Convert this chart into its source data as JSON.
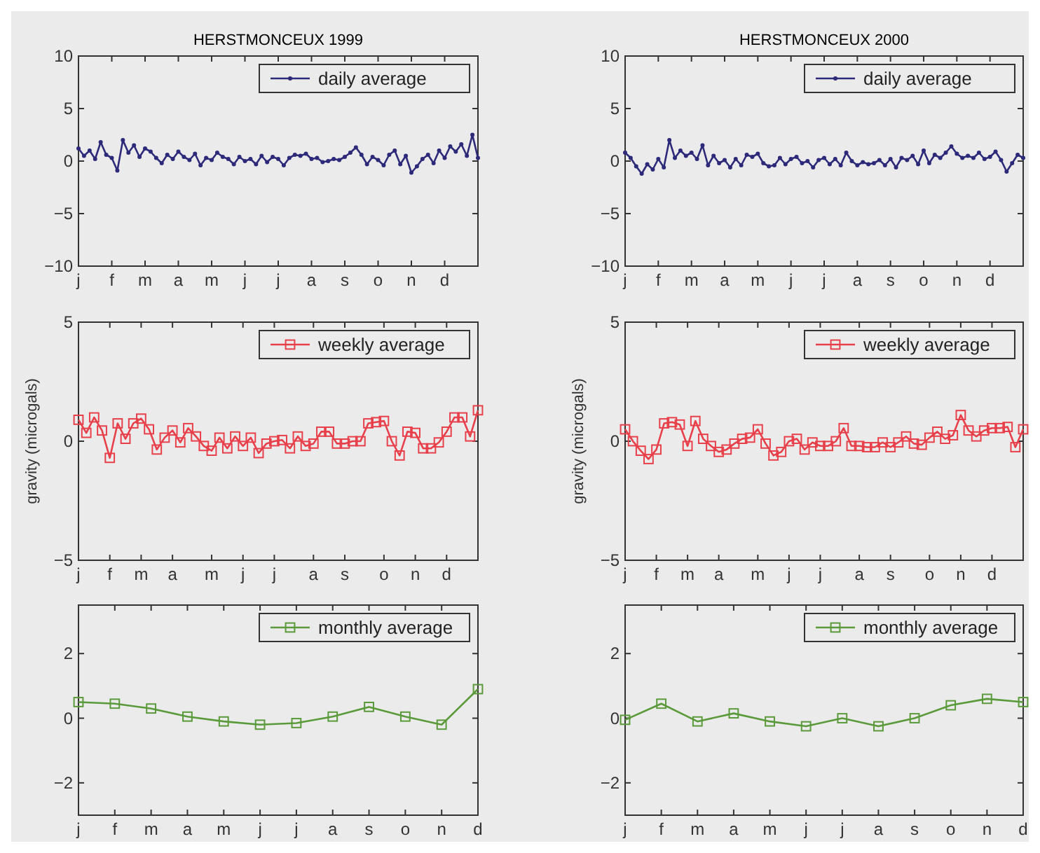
{
  "chart_data": [
    {
      "type": "line",
      "title": "HERSTMONCEUX 1999",
      "marker": "circle",
      "legend": "top right",
      "grid": false,
      "categories": [
        "j",
        null,
        null,
        null,
        null,
        null,
        "f",
        null,
        null,
        null,
        null,
        null,
        "m",
        null,
        null,
        null,
        null,
        null,
        "a",
        null,
        null,
        null,
        null,
        null,
        "m",
        null,
        null,
        null,
        null,
        null,
        "j",
        null,
        null,
        null,
        null,
        null,
        "j",
        null,
        null,
        null,
        null,
        null,
        "a",
        null,
        null,
        null,
        null,
        null,
        "s",
        null,
        null,
        null,
        null,
        null,
        "o",
        null,
        null,
        null,
        null,
        null,
        "n",
        null,
        null,
        null,
        null,
        null,
        "d",
        null,
        null,
        null,
        null,
        null,
        null
      ],
      "series": [
        {
          "name": "daily average",
          "color": "#2e2a7a",
          "values": [
            1.2,
            0.5,
            1.0,
            0.2,
            1.8,
            0.6,
            0.3,
            -0.9,
            2.0,
            0.8,
            1.5,
            0.4,
            1.2,
            0.9,
            0.3,
            -0.2,
            0.6,
            0.2,
            0.9,
            0.4,
            0.1,
            0.7,
            -0.4,
            0.3,
            0.1,
            0.8,
            0.4,
            0.2,
            -0.3,
            0.4,
            0,
            0.2,
            -0.3,
            0.5,
            -0.1,
            0.4,
            0.2,
            -0.4,
            0.3,
            0.6,
            0.5,
            0.7,
            0.2,
            0.3,
            -0.1,
            0,
            0.2,
            0.1,
            0.4,
            0.8,
            1.3,
            0.6,
            -0.3,
            0.4,
            0.1,
            -0.4,
            0.6,
            1.0,
            -0.3,
            0.5,
            -1.1,
            -0.5,
            0.2,
            0.6,
            -0.2,
            1.0,
            0.3,
            1.4,
            0.9,
            1.6,
            0.5,
            2.5,
            0.3
          ]
        }
      ],
      "ylim": [
        -10,
        10
      ],
      "yticks": [
        -10,
        -5,
        0,
        5,
        10
      ]
    },
    {
      "type": "line",
      "title": "HERSTMONCEUX 2000",
      "marker": "circle",
      "legend": "top right",
      "grid": false,
      "categories": [
        "j",
        null,
        null,
        null,
        null,
        null,
        "f",
        null,
        null,
        null,
        null,
        null,
        "m",
        null,
        null,
        null,
        null,
        null,
        "a",
        null,
        null,
        null,
        null,
        null,
        "m",
        null,
        null,
        null,
        null,
        null,
        "j",
        null,
        null,
        null,
        null,
        null,
        "j",
        null,
        null,
        null,
        null,
        null,
        "a",
        null,
        null,
        null,
        null,
        null,
        "s",
        null,
        null,
        null,
        null,
        null,
        "o",
        null,
        null,
        null,
        null,
        null,
        "n",
        null,
        null,
        null,
        null,
        null,
        "d",
        null,
        null,
        null,
        null,
        null,
        null
      ],
      "series": [
        {
          "name": "daily average",
          "color": "#2e2a7a",
          "values": [
            0.8,
            0.3,
            -0.5,
            -1.2,
            -0.3,
            -0.8,
            0.2,
            -0.6,
            2.0,
            0.3,
            1.0,
            0.5,
            0.8,
            0.2,
            1.5,
            -0.4,
            0.5,
            -0.2,
            0.1,
            -0.6,
            0.2,
            -0.4,
            0.6,
            0.4,
            0.7,
            -0.2,
            -0.5,
            -0.4,
            0.3,
            -0.3,
            0.2,
            0.4,
            -0.2,
            0,
            -0.6,
            0.1,
            0.3,
            -0.3,
            0.2,
            -0.4,
            0.8,
            0,
            -0.4,
            -0.1,
            -0.3,
            -0.2,
            0.1,
            -0.4,
            0.2,
            -0.6,
            0.3,
            0.1,
            0.5,
            -0.3,
            1.0,
            -0.2,
            0.6,
            0.3,
            0.8,
            1.4,
            0.7,
            0.3,
            0.5,
            0.3,
            0.8,
            0.2,
            0.4,
            0.9,
            0.1,
            -1.0,
            -0.2,
            0.6,
            0.3
          ]
        }
      ],
      "ylim": [
        -10,
        10
      ],
      "yticks": [
        -10,
        -5,
        0,
        5,
        10
      ]
    },
    {
      "type": "line",
      "ylabel": "gravity (microgals)",
      "marker": "square",
      "legend": "top right",
      "grid": false,
      "categories": [
        "j",
        null,
        null,
        null,
        "f",
        null,
        null,
        null,
        "m",
        null,
        null,
        null,
        "a",
        null,
        null,
        null,
        null,
        "m",
        null,
        null,
        null,
        "j",
        null,
        null,
        null,
        "j",
        null,
        null,
        null,
        null,
        "a",
        null,
        null,
        null,
        "s",
        null,
        null,
        null,
        null,
        "o",
        null,
        null,
        null,
        "n",
        null,
        null,
        null,
        "d",
        null,
        null,
        null,
        null
      ],
      "series": [
        {
          "name": "weekly average",
          "color": "#e8404a",
          "values": [
            0.9,
            0.35,
            1.0,
            0.45,
            -0.7,
            0.75,
            0.1,
            0.75,
            0.95,
            0.5,
            -0.35,
            0.15,
            0.45,
            -0.05,
            0.55,
            0.2,
            -0.2,
            -0.4,
            0.15,
            -0.3,
            0.2,
            -0.2,
            0.15,
            -0.5,
            -0.1,
            0,
            0.05,
            -0.3,
            0.2,
            -0.2,
            -0.1,
            0.4,
            0.4,
            -0.1,
            -0.1,
            0,
            0,
            0.75,
            0.8,
            0.85,
            0,
            -0.6,
            0.4,
            0.35,
            -0.3,
            -0.3,
            -0.05,
            0.4,
            1.0,
            1.0,
            0.2,
            1.3
          ]
        }
      ],
      "ylim": [
        -5,
        5
      ],
      "yticks": [
        -5,
        0,
        5
      ]
    },
    {
      "type": "line",
      "ylabel": "gravity (microgals)",
      "marker": "square",
      "legend": "top right",
      "grid": false,
      "categories": [
        "j",
        null,
        null,
        null,
        "f",
        null,
        null,
        null,
        "m",
        null,
        null,
        null,
        "a",
        null,
        null,
        null,
        null,
        "m",
        null,
        null,
        null,
        "j",
        null,
        null,
        null,
        "j",
        null,
        null,
        null,
        null,
        "a",
        null,
        null,
        null,
        "s",
        null,
        null,
        null,
        null,
        "o",
        null,
        null,
        null,
        "n",
        null,
        null,
        null,
        "d",
        null,
        null,
        null,
        null
      ],
      "series": [
        {
          "name": "weekly average",
          "color": "#e8404a",
          "values": [
            0.5,
            0,
            -0.4,
            -0.75,
            -0.35,
            0.75,
            0.8,
            0.7,
            -0.2,
            0.85,
            0.1,
            -0.2,
            -0.45,
            -0.35,
            -0.1,
            0.1,
            0.15,
            0.5,
            -0.1,
            -0.6,
            -0.45,
            0,
            0.1,
            -0.35,
            -0.05,
            -0.2,
            -0.2,
            0,
            0.55,
            -0.2,
            -0.2,
            -0.25,
            -0.25,
            -0.05,
            -0.25,
            -0.05,
            0.2,
            -0.1,
            -0.15,
            0.15,
            0.4,
            0.1,
            0.25,
            1.1,
            0.45,
            0.2,
            0.45,
            0.55,
            0.55,
            0.6,
            -0.25,
            0.5
          ]
        }
      ],
      "ylim": [
        -5,
        5
      ],
      "yticks": [
        -5,
        0,
        5
      ]
    },
    {
      "type": "line",
      "marker": "square",
      "legend": "top right",
      "grid": false,
      "categories": [
        "j",
        "f",
        "m",
        "a",
        "m",
        "j",
        "j",
        "a",
        "s",
        "o",
        "n",
        "d"
      ],
      "series": [
        {
          "name": "monthly average",
          "color": "#5a9a3a",
          "values": [
            0.5,
            0.45,
            0.3,
            0.05,
            -0.1,
            -0.2,
            -0.15,
            0.05,
            0.35,
            0.05,
            -0.2,
            0.9
          ]
        }
      ],
      "ylim": [
        -3,
        3.5
      ],
      "yticks": [
        -2,
        0,
        2
      ]
    },
    {
      "type": "line",
      "marker": "square",
      "legend": "top right",
      "grid": false,
      "categories": [
        "j",
        "f",
        "m",
        "a",
        "m",
        "j",
        "j",
        "a",
        "s",
        "o",
        "n",
        "d"
      ],
      "series": [
        {
          "name": "monthly average",
          "color": "#5a9a3a",
          "values": [
            -0.05,
            0.45,
            -0.1,
            0.15,
            -0.1,
            -0.25,
            0,
            -0.25,
            0,
            0.4,
            0.6,
            0.5
          ]
        }
      ],
      "ylim": [
        -3,
        3.5
      ],
      "yticks": [
        -2,
        0,
        2
      ]
    }
  ]
}
